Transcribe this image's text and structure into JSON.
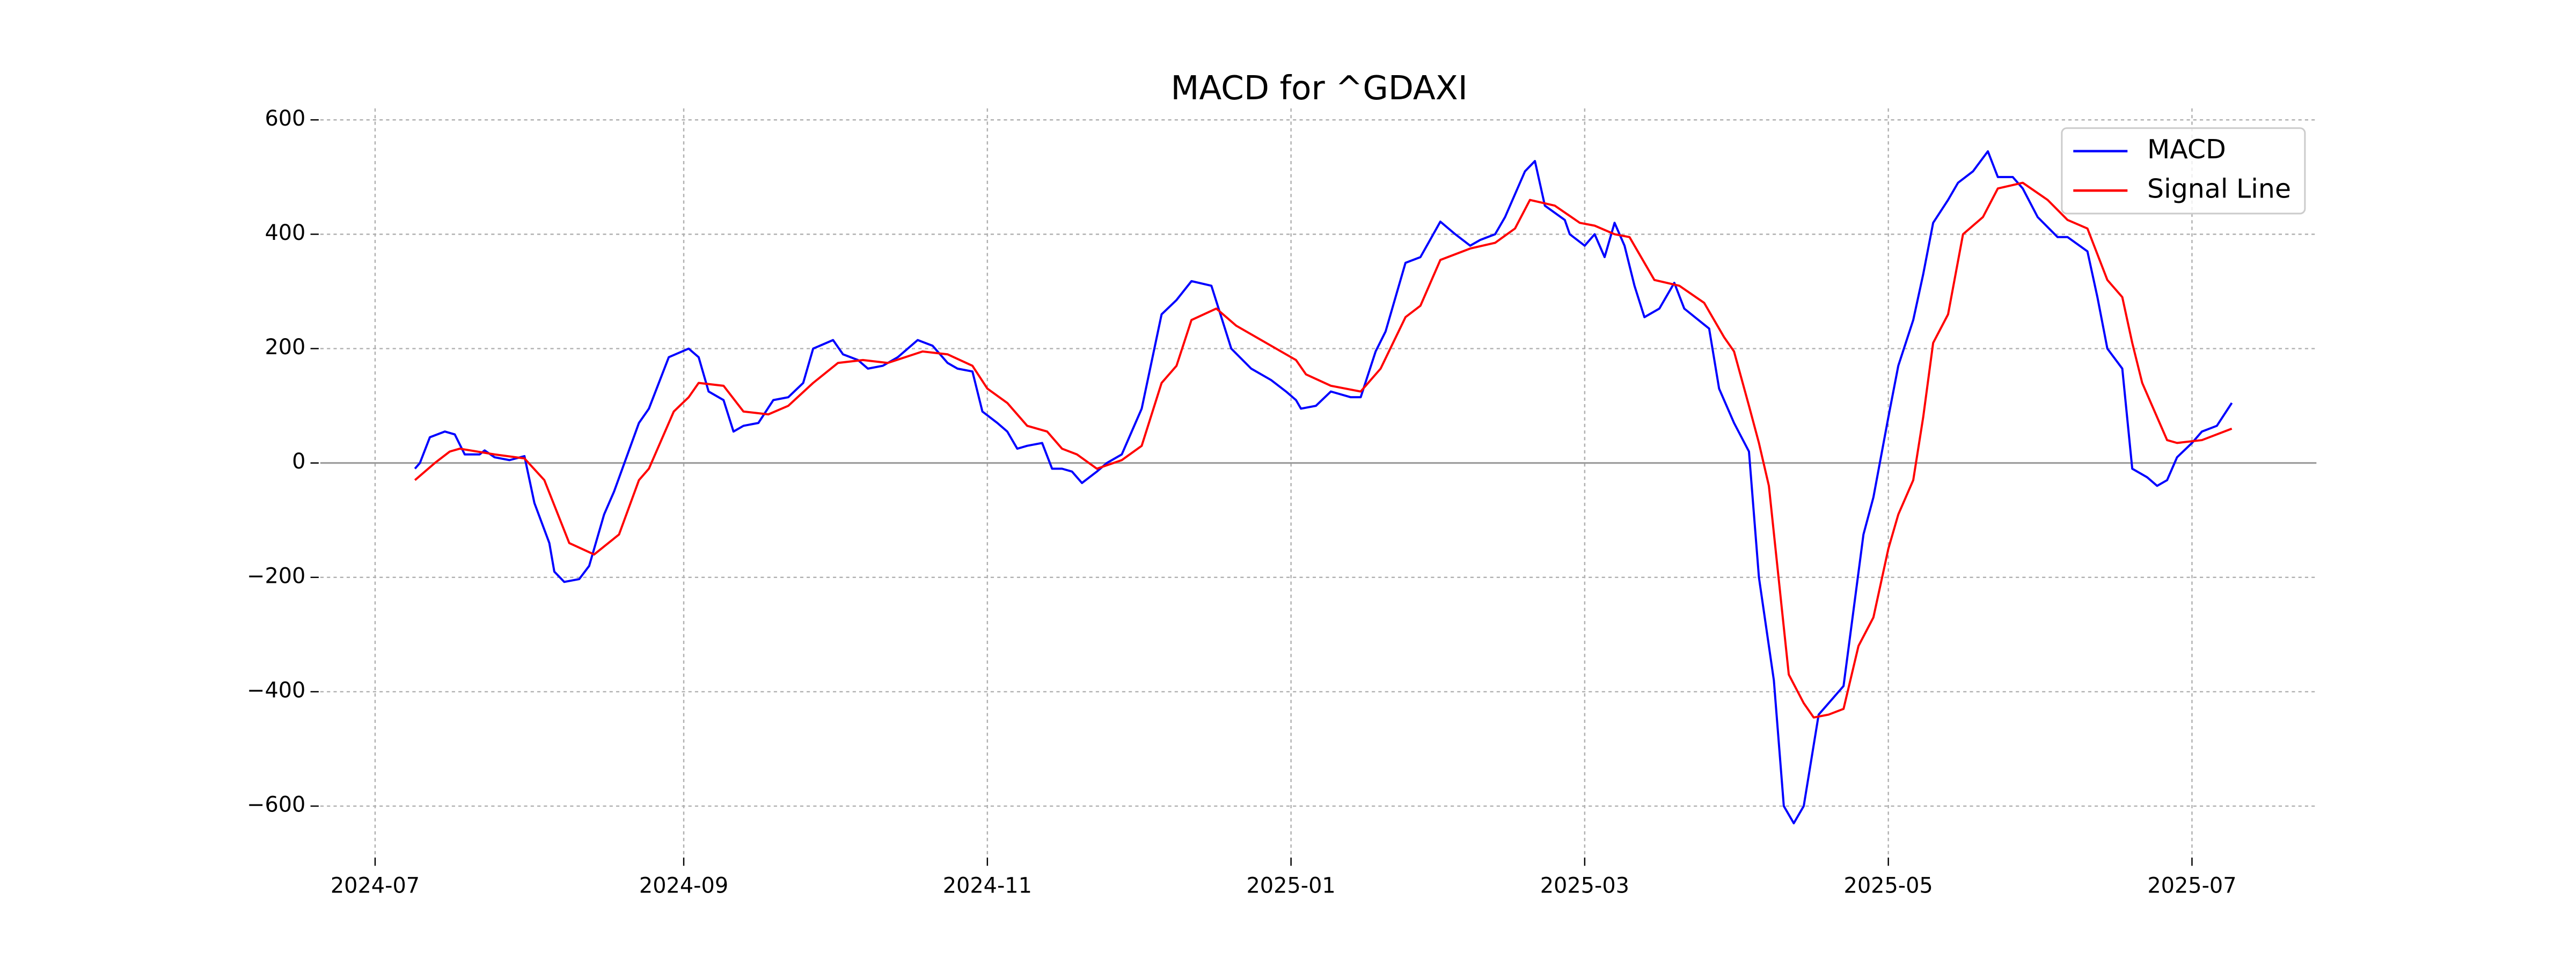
{
  "chart_data": {
    "type": "line",
    "title": "MACD for ^GDAXI",
    "xlim": [
      -11,
      390
    ],
    "xticks": [
      {
        "value": 0,
        "label": "2024-07"
      },
      {
        "value": 62,
        "label": "2024-09"
      },
      {
        "value": 123,
        "label": "2024-11"
      },
      {
        "value": 184,
        "label": "2025-01"
      },
      {
        "value": 243,
        "label": "2025-03"
      },
      {
        "value": 304,
        "label": "2025-05"
      },
      {
        "value": 365,
        "label": "2025-07"
      }
    ],
    "ylim": [
      -690,
      620
    ],
    "yticks": [
      {
        "value": -600,
        "label": "−600"
      },
      {
        "value": -400,
        "label": "−400"
      },
      {
        "value": -200,
        "label": "−200"
      },
      0,
      200,
      400,
      600
    ],
    "grid": true,
    "axhline": 0,
    "legend": "upper right",
    "series": [
      {
        "name": "MACD",
        "color": "#0000ff",
        "x": [
          8,
          9,
          11,
          14,
          16,
          18,
          21,
          22,
          24,
          27,
          30,
          32,
          35,
          36,
          38,
          41,
          43,
          46,
          48,
          53,
          55,
          59,
          63,
          65,
          67,
          70,
          72,
          74,
          77,
          80,
          83,
          86,
          88,
          92,
          94,
          97,
          99,
          102,
          105,
          107,
          109,
          112,
          115,
          117,
          120,
          122,
          125,
          127,
          129,
          131,
          134,
          136,
          138,
          140,
          142,
          145,
          147,
          150,
          152,
          154,
          158,
          161,
          164,
          168,
          172,
          176,
          180,
          183,
          185,
          186,
          189,
          192,
          196,
          198,
          201,
          203,
          207,
          210,
          214,
          217,
          220,
          222,
          225,
          227,
          229,
          231,
          233,
          235,
          239,
          240,
          243,
          245,
          247,
          249,
          251,
          253,
          255,
          258,
          261,
          263,
          268,
          270,
          273,
          276,
          278,
          281,
          283,
          285,
          287,
          290,
          292,
          295,
          299,
          301,
          304,
          306,
          309,
          311,
          313,
          316,
          318,
          321,
          324,
          326,
          329,
          331,
          334,
          338,
          340,
          344,
          346,
          348,
          351,
          353,
          356,
          358,
          360,
          362,
          365,
          367,
          370,
          373
        ],
        "values": [
          -10,
          0,
          45,
          55,
          50,
          15,
          15,
          22,
          10,
          5,
          12,
          -70,
          -140,
          -190,
          -208,
          -203,
          -180,
          -90,
          -50,
          70,
          95,
          185,
          200,
          185,
          125,
          110,
          55,
          65,
          70,
          110,
          115,
          140,
          200,
          215,
          190,
          180,
          165,
          170,
          185,
          200,
          215,
          205,
          175,
          165,
          160,
          90,
          70,
          55,
          25,
          30,
          35,
          -10,
          -10,
          -15,
          -35,
          -15,
          0,
          15,
          55,
          95,
          260,
          285,
          318,
          310,
          200,
          165,
          145,
          125,
          110,
          95,
          100,
          125,
          115,
          115,
          195,
          230,
          350,
          360,
          422,
          400,
          380,
          390,
          400,
          430,
          470,
          510,
          528,
          450,
          425,
          400,
          380,
          400,
          360,
          420,
          380,
          310,
          255,
          270,
          315,
          270,
          235,
          130,
          70,
          20,
          -200,
          -380,
          -600,
          -630,
          -600,
          -440,
          -420,
          -390,
          -125,
          -60,
          80,
          170,
          250,
          330,
          420,
          460,
          490,
          510,
          545,
          500,
          500,
          480,
          430,
          395,
          395,
          370,
          290,
          200,
          165,
          -10,
          -25,
          -40,
          -30,
          10,
          35,
          55,
          65,
          105
        ]
      },
      {
        "name": "Signal Line",
        "color": "#ff0000",
        "x": [
          8,
          12,
          15,
          17,
          24,
          30,
          34,
          39,
          44,
          49,
          53,
          55,
          60,
          63,
          65,
          70,
          74,
          79,
          83,
          88,
          93,
          98,
          103,
          110,
          115,
          120,
          123,
          127,
          131,
          135,
          138,
          141,
          145,
          150,
          154,
          158,
          161,
          164,
          169,
          173,
          179,
          185,
          187,
          192,
          198,
          202,
          207,
          210,
          214,
          220,
          225,
          229,
          232,
          237,
          242,
          245,
          249,
          252,
          257,
          262,
          267,
          271,
          273,
          276,
          278,
          280,
          284,
          287,
          289,
          292,
          295,
          298,
          301,
          304,
          306,
          309,
          311,
          313,
          316,
          319,
          323,
          326,
          331,
          336,
          340,
          344,
          348,
          351,
          353,
          355,
          357,
          360,
          362,
          367,
          373
        ],
        "values": [
          -30,
          0,
          20,
          25,
          15,
          8,
          -30,
          -140,
          -160,
          -125,
          -30,
          -10,
          90,
          115,
          140,
          135,
          90,
          85,
          100,
          140,
          175,
          180,
          175,
          195,
          190,
          170,
          130,
          105,
          65,
          55,
          25,
          15,
          -10,
          5,
          30,
          140,
          170,
          250,
          270,
          240,
          210,
          180,
          155,
          135,
          125,
          165,
          255,
          275,
          355,
          375,
          385,
          410,
          460,
          450,
          420,
          415,
          400,
          395,
          320,
          310,
          280,
          220,
          195,
          100,
          35,
          -40,
          -370,
          -420,
          -445,
          -440,
          -430,
          -320,
          -270,
          -150,
          -90,
          -30,
          80,
          210,
          260,
          400,
          430,
          480,
          490,
          460,
          425,
          410,
          320,
          290,
          210,
          140,
          100,
          40,
          35,
          40,
          60
        ]
      }
    ]
  }
}
